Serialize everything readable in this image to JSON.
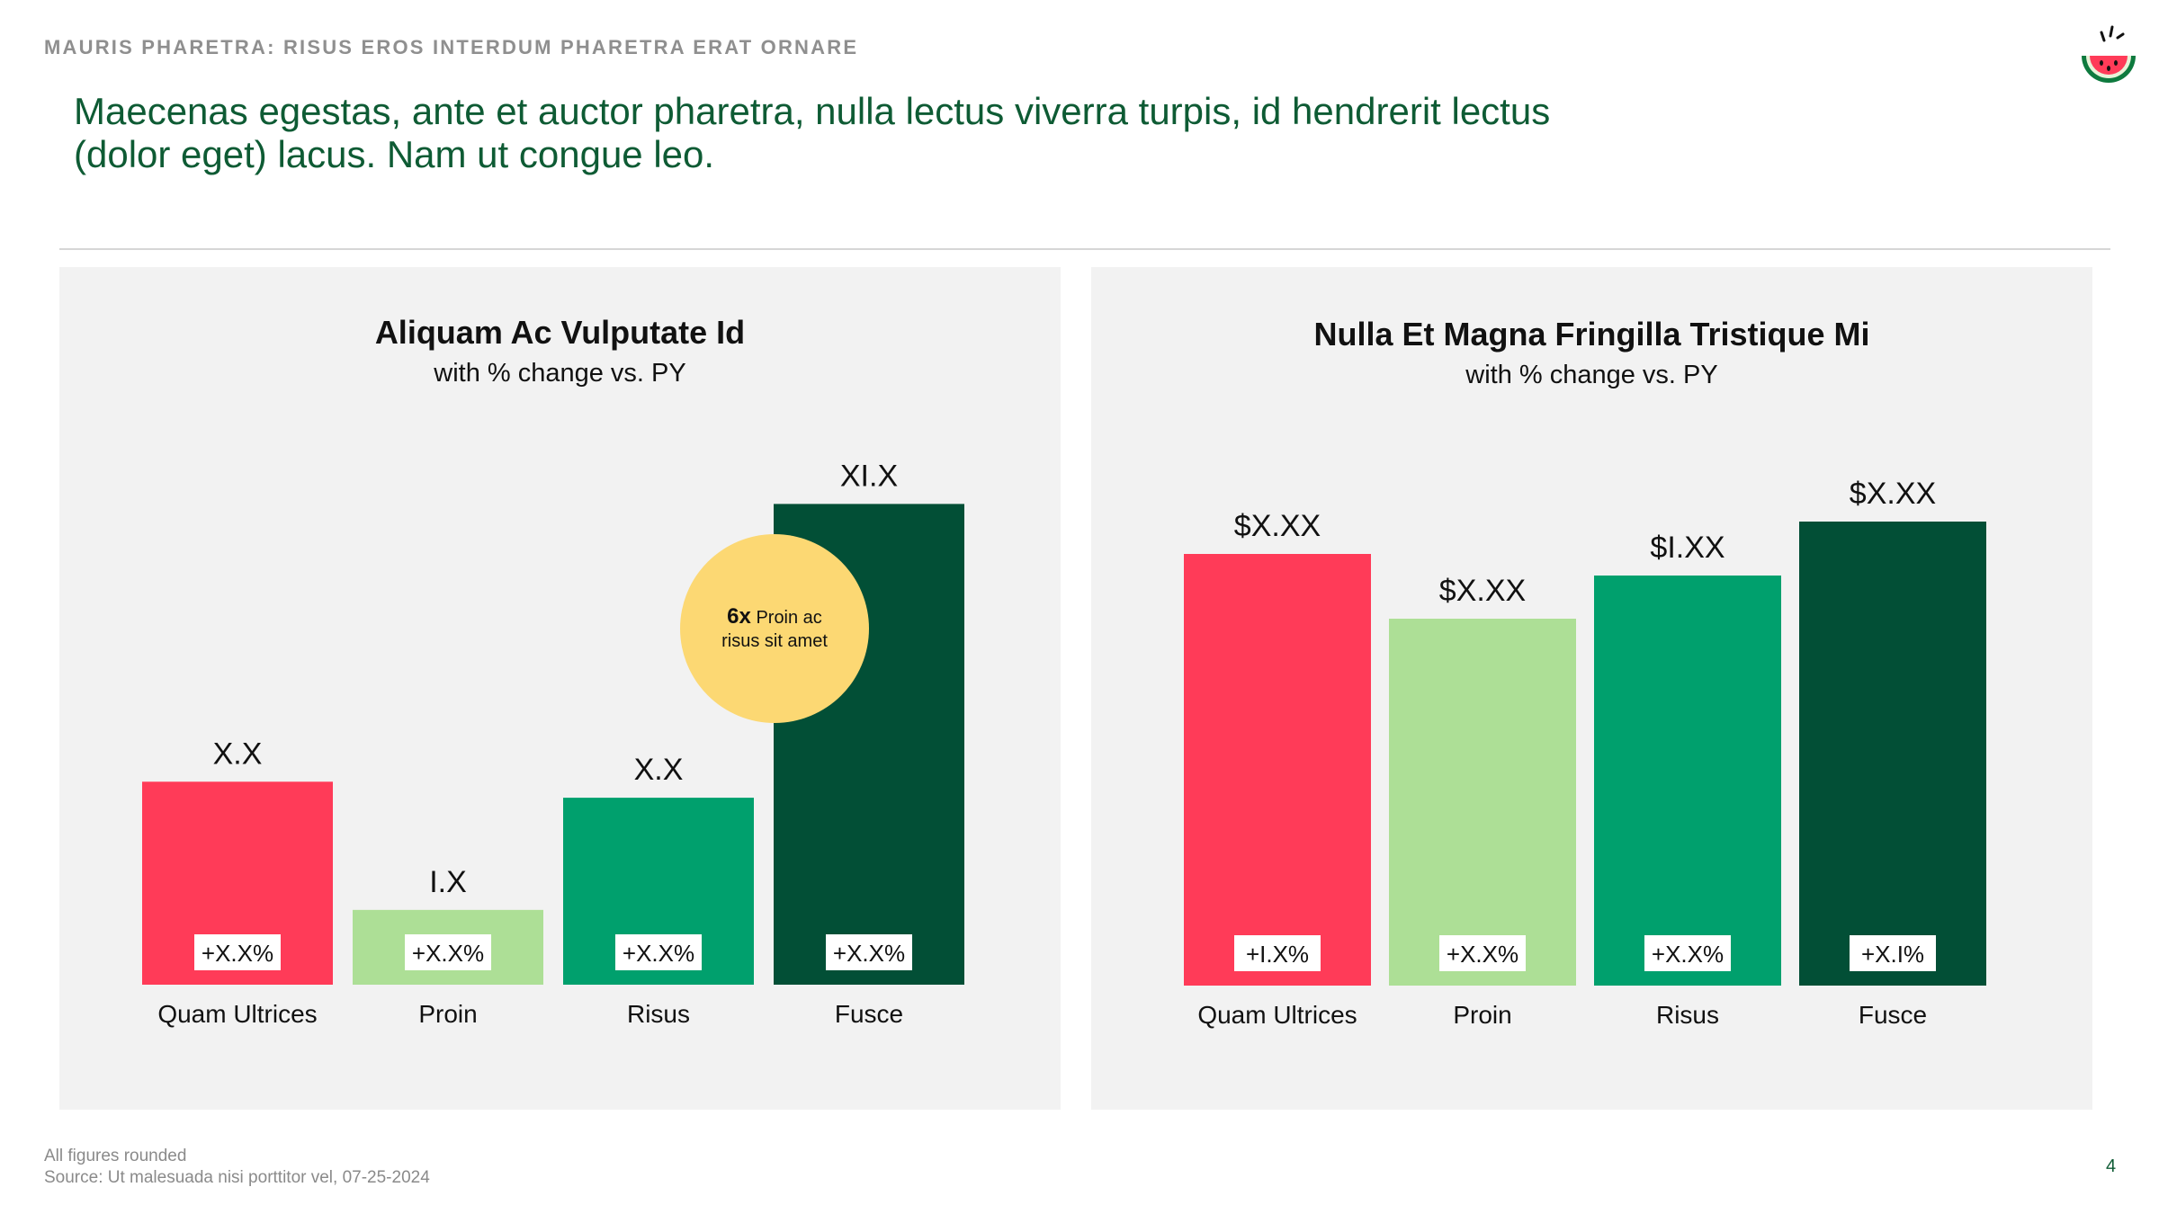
{
  "header": {
    "eyebrow": "MAURIS PHARETRA: RISUS EROS INTERDUM PHARETRA ERAT ORNARE",
    "headline": "Maecenas egestas, ante et auctor pharetra, nulla lectus viverra turpis, id hendrerit lectus (dolor eget) lacus. Nam ut congue leo."
  },
  "logo": {
    "icon": "watermelon-icon"
  },
  "colors": {
    "accent_green": "#0e5b34",
    "red": "#ff3b58",
    "light_green": "#addf96",
    "mid_green": "#00a06d",
    "dark_green": "#024f36",
    "callout": "#fcd873",
    "panel_bg": "#f2f2f2"
  },
  "chart_data": [
    {
      "type": "bar",
      "title": "Aliquam Ac Vulputate Id",
      "subtitle": "with % change vs. PY",
      "categories": [
        "Quam Ultrices",
        "Proin",
        "Risus",
        "Fusce"
      ],
      "values": [
        1.9,
        0.7,
        1.75,
        4.5
      ],
      "value_labels": [
        "X.X",
        "I.X",
        "X.X",
        "XI.X"
      ],
      "change_labels": [
        "+X.X%",
        "+X.X%",
        "+X.X%",
        "+X.X%"
      ],
      "colors": [
        "#ff3b58",
        "#addf96",
        "#00a06d",
        "#024f36"
      ],
      "ylim": [
        0,
        5
      ],
      "grid": false,
      "callout": {
        "bold": "6x",
        "text_1": "Proin ac",
        "text_2": "risus sit amet"
      }
    },
    {
      "type": "bar",
      "title": "Nulla Et Magna Fringilla Tristique Mi",
      "subtitle": "with % change vs. PY",
      "categories": [
        "Quam Ultrices",
        "Proin",
        "Risus",
        "Fusce"
      ],
      "values": [
        4.0,
        3.4,
        3.8,
        4.3
      ],
      "value_labels": [
        "$X.XX",
        "$X.XX",
        "$I.XX",
        "$X.XX"
      ],
      "change_labels": [
        "+I.X%",
        "+X.X%",
        "+X.X%",
        "+X.I%"
      ],
      "colors": [
        "#ff3b58",
        "#addf96",
        "#00a06d",
        "#024f36"
      ],
      "ylim": [
        0,
        5
      ],
      "grid": false
    }
  ],
  "footer": {
    "note": "All figures rounded",
    "source": "Source: Ut malesuada nisi porttitor vel, 07-25-2024",
    "page": "4"
  }
}
